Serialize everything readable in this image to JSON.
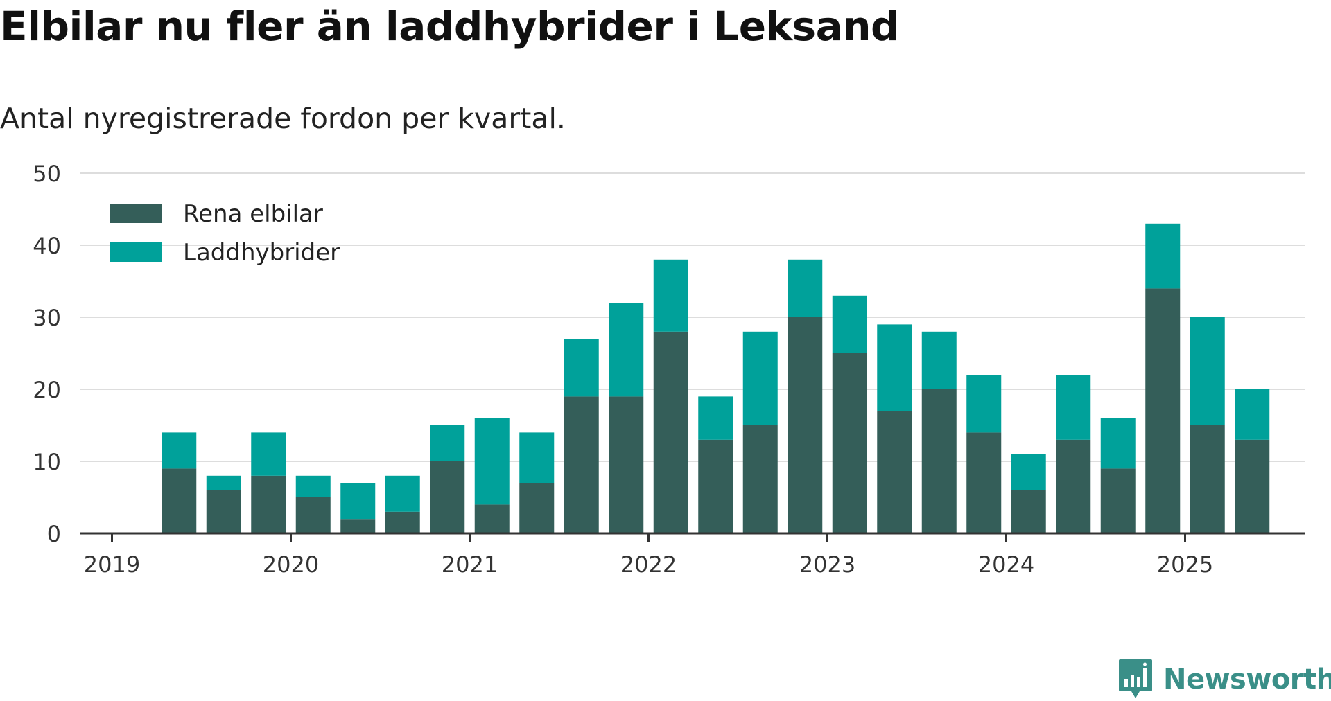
{
  "title": "Elbilar nu fler än laddhybrider i Leksand",
  "subtitle": "Antal nyregistrerade fordon per kvartal.",
  "logo": {
    "text": "Newsworthy",
    "icon": "newsworthy-bar-chart-icon"
  },
  "colors": {
    "rena": "#345e59",
    "laddhybrider": "#00a19a",
    "grid": "#dddddd",
    "axis": "#333333",
    "logo": "#3a8f88"
  },
  "chart_data": {
    "type": "bar",
    "stacked": true,
    "categories": [
      "2019 Q2",
      "2019 Q3",
      "2019 Q4",
      "2020 Q1",
      "2020 Q2",
      "2020 Q3",
      "2020 Q4",
      "2021 Q1",
      "2021 Q2",
      "2021 Q3",
      "2021 Q4",
      "2022 Q1",
      "2022 Q2",
      "2022 Q3",
      "2022 Q4",
      "2023 Q1",
      "2023 Q2",
      "2023 Q3",
      "2023 Q4",
      "2024 Q1",
      "2024 Q2",
      "2024 Q3",
      "2024 Q4",
      "2025 Q1",
      "2025 Q2"
    ],
    "series": [
      {
        "name": "Rena elbilar",
        "color": "#345e59",
        "values": [
          9,
          6,
          8,
          5,
          2,
          3,
          10,
          4,
          7,
          19,
          19,
          28,
          13,
          15,
          30,
          25,
          17,
          20,
          14,
          6,
          13,
          9,
          34,
          15,
          13
        ]
      },
      {
        "name": "Laddhybrider",
        "color": "#00a19a",
        "values": [
          5,
          2,
          6,
          3,
          5,
          5,
          5,
          12,
          7,
          8,
          13,
          10,
          6,
          13,
          8,
          8,
          12,
          8,
          8,
          5,
          9,
          7,
          9,
          15,
          7
        ]
      }
    ],
    "x_tick_labels": [
      "2019",
      "2020",
      "2021",
      "2022",
      "2023",
      "2024",
      "2025"
    ],
    "y_ticks": [
      0,
      10,
      20,
      30,
      40,
      50
    ],
    "ylim": [
      0,
      50
    ],
    "grid": true,
    "legend": "top-left"
  }
}
